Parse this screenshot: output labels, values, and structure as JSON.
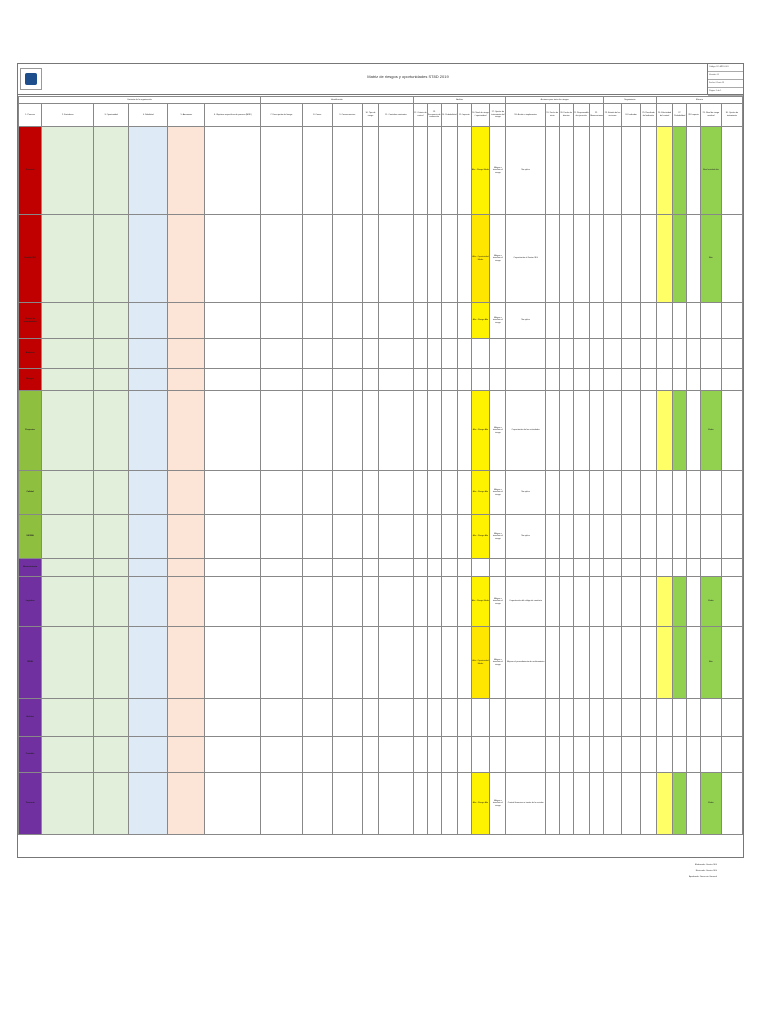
{
  "document": {
    "title": "Matriz de riesgos y oportunidades ST8D 2019",
    "meta": [
      "Código: FO-MRO-001",
      "Versión: 01",
      "Fecha: 01-oct-19",
      "Página 1 de 1"
    ],
    "groups": {
      "contexto": "Contexto de la organización",
      "identificacion": "Identificación",
      "analisis": "Análisis",
      "acciones": "Acciones para tratar los riesgos",
      "respuesta": "Respuesta general",
      "seguimiento": "Seguimiento",
      "evaluacion": "Evaluación de la efectividad",
      "eficacia": "Eficacia"
    },
    "columns": [
      "1. Proceso",
      "2. Fortalezas",
      "3. Oportunidad",
      "4. Debilidad",
      "5. Amenazas",
      "6. Objetivos especificos de proceso (MRF)",
      "7. Descripción del riesgo",
      "8. Causa",
      "9. Consecuencias",
      "10. Tipo de riesgo",
      "11. Controles existentes",
      "12. Criterio de control",
      "13. Frecuencia de evaluación",
      "14. Probabilidad",
      "15. Impacto",
      "16. Nivel de riesgo / oportunidad",
      "17. Opción de tratamiento del riesgo",
      "18. Acción a implementar",
      "19. Fecha de inicio",
      "20. Fecha de término",
      "21. Responsable de ejecución",
      "22. Observaciones",
      "23. Estado de las acciones",
      "24. Indicador",
      "25. Resultado del indicador",
      "26. Efectividad del control",
      "27. Probabilidad",
      "28. Impacto",
      "29. Nivel de riesgo residual",
      "30. Opción de tratamiento"
    ],
    "rows": [
      {
        "proceso": "Gerencia",
        "color": "#c00000",
        "nivel": "Alto",
        "nivel_label": "Alto - Riesgo Medio",
        "opcion": "Mitigar o transferir el riesgo",
        "accion": "No aplica",
        "residual": "Nivel residual alto"
      },
      {
        "proceso": "Gestión SIG",
        "color": "#c00000",
        "nivel": "Medio",
        "nivel_label": "Alto - Oportunidad Media",
        "opcion": "Mitigar o transferir el riesgo",
        "accion": "Capacitación al Gestor SIG",
        "residual": "Alta"
      },
      {
        "proceso": "Control de cumplimiento",
        "color": "#c00000",
        "nivel": "Alto",
        "nivel_label": "Alto - Riesgo Alto",
        "opcion": "Mitigar o transferir el riesgo",
        "accion": "No aplica",
        "residual": ""
      },
      {
        "proceso": "Auditoría",
        "color": "#c00000",
        "nivel": "",
        "nivel_label": "",
        "opcion": "",
        "accion": "",
        "residual": ""
      },
      {
        "proceso": "Riesgos",
        "color": "#c00000",
        "nivel": "",
        "nivel_label": "",
        "opcion": "",
        "accion": "",
        "residual": ""
      },
      {
        "proceso": "Proyectos",
        "color": "#8fbf3f",
        "nivel": "Alto",
        "nivel_label": "Alto - Riesgo Alto",
        "opcion": "Mitigar o transferir el riesgo",
        "accion": "Capacitación de las actividades",
        "residual": "Media"
      },
      {
        "proceso": "Calidad",
        "color": "#8fbf3f",
        "nivel": "Alto",
        "nivel_label": "Alto - Riesgo Alto",
        "opcion": "Mitigar o transferir el riesgo",
        "accion": "No aplica",
        "residual": ""
      },
      {
        "proceso": "SSOMA",
        "color": "#8fbf3f",
        "nivel": "Alto",
        "nivel_label": "Alto - Riesgo Alto",
        "opcion": "Mitigar o transferir el riesgo",
        "accion": "No aplica",
        "residual": ""
      },
      {
        "proceso": "Mantenimiento",
        "color": "#7030a0",
        "nivel": "",
        "nivel_label": "",
        "opcion": "",
        "accion": "",
        "residual": ""
      },
      {
        "proceso": "Logística",
        "color": "#7030a0",
        "nivel": "Alto",
        "nivel_label": "Alto - Riesgo Medio",
        "opcion": "Mitigar o transferir el riesgo",
        "accion": "Capacitación del código de conducta",
        "residual": "Media"
      },
      {
        "proceso": "RRHH",
        "color": "#7030a0",
        "nivel": "Medio",
        "nivel_label": "Alto - Oportunidad Media",
        "opcion": "Mitigar o transferir el riesgo",
        "accion": "Mejorar el procedimiento de reclutamiento",
        "residual": "Alta"
      },
      {
        "proceso": "Archivo",
        "color": "#7030a0",
        "nivel": "",
        "nivel_label": "",
        "opcion": "",
        "accion": "",
        "residual": ""
      },
      {
        "proceso": "Contable",
        "color": "#7030a0",
        "nivel": "",
        "nivel_label": "",
        "opcion": "",
        "accion": "",
        "residual": ""
      },
      {
        "proceso": "Tesorería",
        "color": "#7030a0",
        "nivel": "Alto",
        "nivel_label": "Alto - Riesgo Alto",
        "opcion": "Mitigar o transferir el riesgo",
        "accion": "Control financiero a través de la revisión",
        "residual": "Media"
      }
    ],
    "signatures": [
      "Elaborado: Gestor SIG",
      "Revisado: Gestor SIG",
      "Aprobado: Gerencia General"
    ]
  }
}
